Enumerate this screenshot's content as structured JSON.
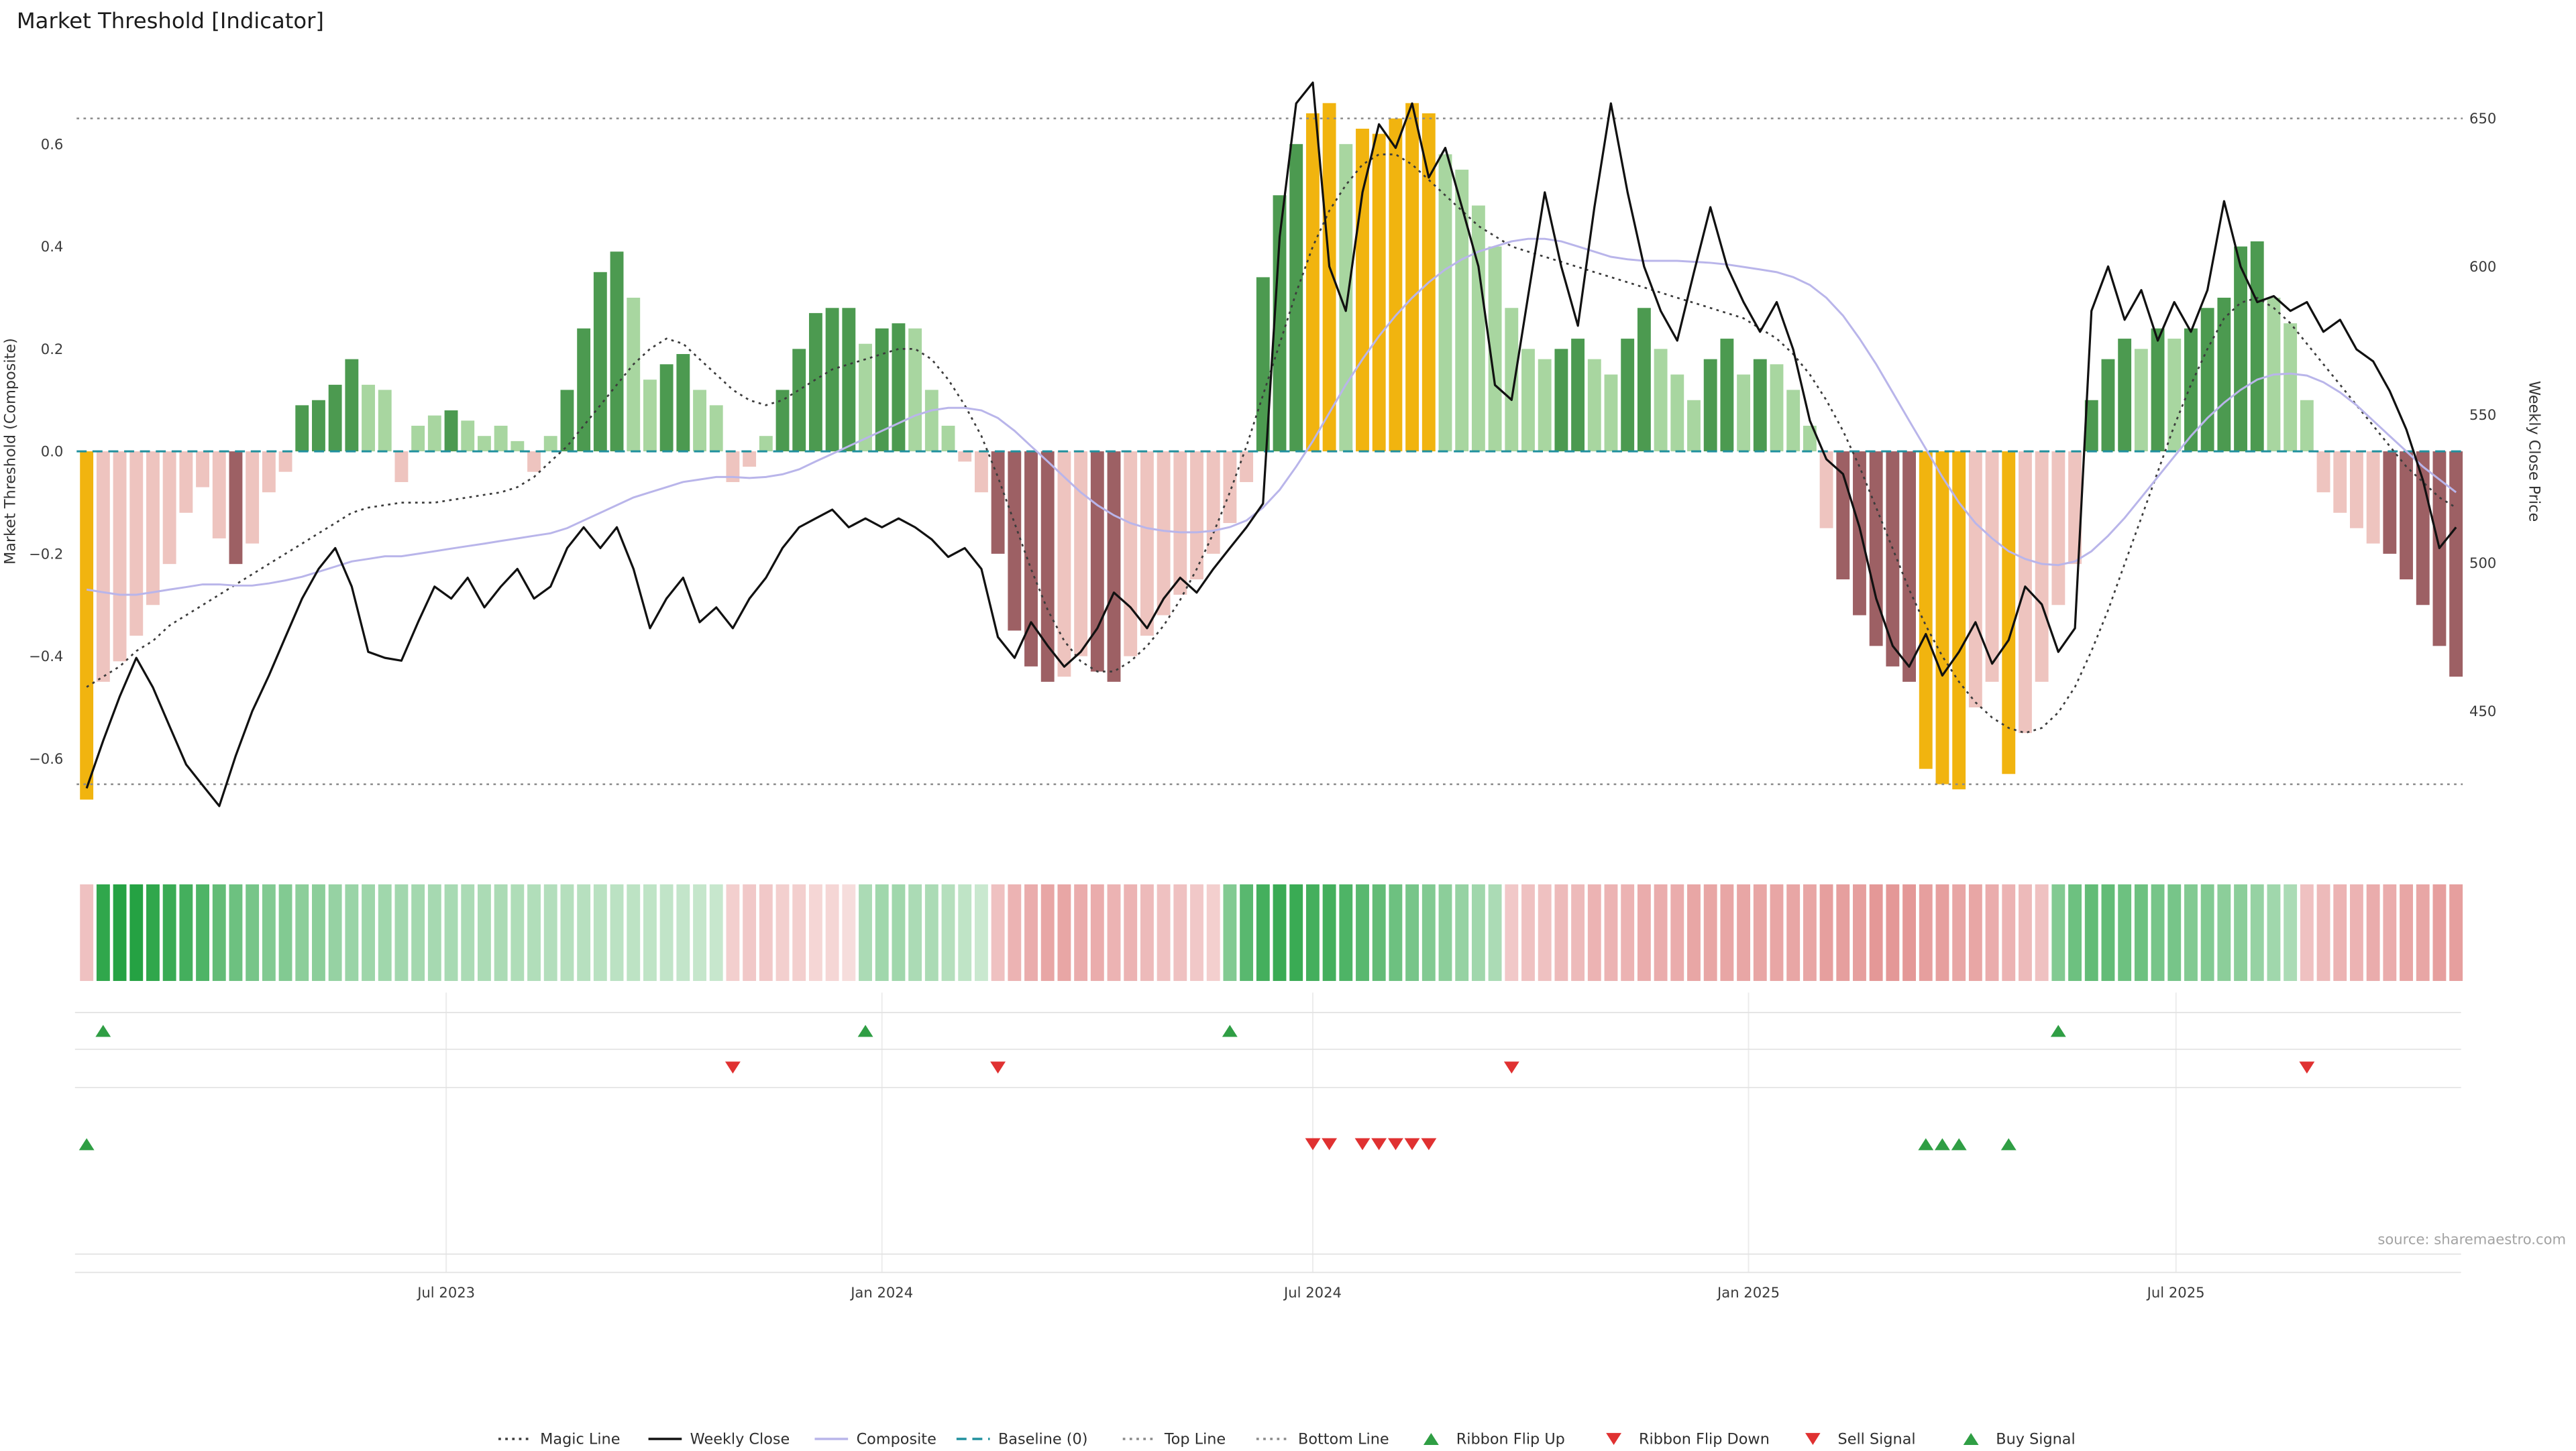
{
  "title": "Market Threshold [Indicator]",
  "source_note": "source: sharemaestro.com",
  "axes": {
    "left_label": "Market Threshold (Composite)",
    "right_label": "Weekly Close Price",
    "left_ticks": [
      "0.6",
      "0.4",
      "0.2",
      "0.0",
      "−0.2",
      "−0.4",
      "−0.6"
    ],
    "right_ticks": [
      "650",
      "600",
      "550",
      "500",
      "450"
    ],
    "x_ticks": [
      {
        "label": "Jul 2023",
        "week": 21.7
      },
      {
        "label": "Jan 2024",
        "week": 48.0
      },
      {
        "label": "Jul 2024",
        "week": 74.0
      },
      {
        "label": "Jan 2025",
        "week": 100.3
      },
      {
        "label": "Jul 2025",
        "week": 126.1
      }
    ]
  },
  "colors": {
    "bar_green_strong": "#4c9a50",
    "bar_green_soft": "#a8d6a0",
    "bar_red_strong": "#9d6064",
    "bar_red_soft": "#eec4bf",
    "extreme_gold": "#f1b40f",
    "weekly_close": "#111111",
    "composite": "#b9b5ea",
    "magic": "#3c3c3c",
    "baseline_teal": "#20909e",
    "guide_gray": "#8a8a8a",
    "signal_green": "#2f9e44",
    "signal_red": "#e03131",
    "grid": "#ececec",
    "separator": "#e2e2e2"
  },
  "legend": [
    {
      "label": "Magic Line",
      "swatch": "dotted-line",
      "color": "#3c3c3c"
    },
    {
      "label": "Weekly Close",
      "swatch": "solid-line",
      "color": "#111111"
    },
    {
      "label": "Composite",
      "swatch": "solid-line",
      "color": "#b9b5ea"
    },
    {
      "label": "Baseline (0)",
      "swatch": "dashed-line",
      "color": "#20909e"
    },
    {
      "label": "Top Line",
      "swatch": "dotted-line",
      "color": "#8a8a8a"
    },
    {
      "label": "Bottom Line",
      "swatch": "dotted-line",
      "color": "#8a8a8a"
    },
    {
      "label": "Ribbon Flip Up",
      "swatch": "triangle-up",
      "color": "#2f9e44"
    },
    {
      "label": "Ribbon Flip Down",
      "swatch": "triangle-down",
      "color": "#e03131"
    },
    {
      "label": "Sell Signal",
      "swatch": "triangle-down",
      "color": "#e03131"
    },
    {
      "label": "Buy Signal",
      "swatch": "triangle-up",
      "color": "#2f9e44"
    }
  ],
  "chart_data": {
    "type": "mixed_bar_line",
    "x_axis": {
      "start_date": "2023-01-30",
      "interval": "weekly",
      "points": 144
    },
    "ylim_left": [
      -0.81,
      0.77
    ],
    "ylim_right": [
      397,
      670
    ],
    "baseline": 0,
    "top_line": 0.65,
    "bottom_line": -0.65,
    "threshold": [
      -0.68,
      -0.45,
      -0.41,
      -0.36,
      -0.3,
      -0.22,
      -0.12,
      -0.07,
      -0.17,
      -0.22,
      -0.18,
      -0.08,
      -0.04,
      0.09,
      0.1,
      0.13,
      0.18,
      0.13,
      0.12,
      -0.06,
      0.05,
      0.07,
      0.08,
      0.06,
      0.03,
      0.05,
      0.02,
      -0.04,
      0.03,
      0.12,
      0.24,
      0.35,
      0.39,
      0.3,
      0.14,
      0.17,
      0.19,
      0.12,
      0.09,
      -0.06,
      -0.03,
      0.03,
      0.12,
      0.2,
      0.27,
      0.28,
      0.28,
      0.21,
      0.24,
      0.25,
      0.24,
      0.12,
      0.05,
      -0.02,
      -0.08,
      -0.2,
      -0.35,
      -0.42,
      -0.45,
      -0.44,
      -0.4,
      -0.43,
      -0.45,
      -0.4,
      -0.36,
      -0.32,
      -0.28,
      -0.25,
      -0.2,
      -0.14,
      -0.06,
      0.34,
      0.5,
      0.6,
      0.66,
      0.68,
      0.6,
      0.63,
      0.62,
      0.65,
      0.68,
      0.66,
      0.58,
      0.55,
      0.48,
      0.4,
      0.28,
      0.2,
      0.18,
      0.2,
      0.22,
      0.18,
      0.15,
      0.22,
      0.28,
      0.2,
      0.15,
      0.1,
      0.18,
      0.22,
      0.15,
      0.18,
      0.17,
      0.12,
      0.05,
      -0.15,
      -0.25,
      -0.32,
      -0.38,
      -0.42,
      -0.45,
      -0.62,
      -0.65,
      -0.66,
      -0.5,
      -0.45,
      -0.63,
      -0.55,
      -0.45,
      -0.3,
      -0.22,
      0.1,
      0.18,
      0.22,
      0.2,
      0.24,
      0.22,
      0.24,
      0.28,
      0.3,
      0.4,
      0.41,
      0.3,
      0.25,
      0.1,
      -0.08,
      -0.12,
      -0.15,
      -0.18,
      -0.2,
      -0.25,
      -0.3,
      -0.38,
      -0.44
    ],
    "weekly_close": [
      424,
      440,
      455,
      468,
      458,
      445,
      432,
      425,
      418,
      435,
      450,
      462,
      475,
      488,
      498,
      505,
      492,
      470,
      468,
      467,
      480,
      492,
      488,
      495,
      485,
      492,
      498,
      488,
      492,
      505,
      512,
      505,
      512,
      498,
      478,
      488,
      495,
      480,
      485,
      478,
      488,
      495,
      505,
      512,
      515,
      518,
      512,
      515,
      512,
      515,
      512,
      508,
      502,
      505,
      498,
      475,
      468,
      480,
      472,
      465,
      470,
      478,
      490,
      485,
      478,
      488,
      495,
      490,
      498,
      505,
      512,
      520,
      610,
      655,
      662,
      600,
      585,
      625,
      648,
      640,
      655,
      630,
      640,
      620,
      600,
      560,
      555,
      590,
      625,
      600,
      580,
      620,
      655,
      625,
      600,
      585,
      575,
      598,
      620,
      600,
      588,
      578,
      588,
      572,
      548,
      535,
      530,
      512,
      488,
      472,
      465,
      476,
      462,
      470,
      480,
      466,
      474,
      492,
      486,
      470,
      478,
      585,
      600,
      582,
      592,
      575,
      588,
      578,
      592,
      622,
      600,
      588,
      590,
      585,
      588,
      578,
      582,
      572,
      568,
      558,
      545,
      528,
      505,
      512
    ],
    "composite": [
      -0.27,
      -0.275,
      -0.28,
      -0.28,
      -0.275,
      -0.27,
      -0.265,
      -0.26,
      -0.26,
      -0.262,
      -0.262,
      -0.258,
      -0.252,
      -0.245,
      -0.235,
      -0.225,
      -0.215,
      -0.21,
      -0.205,
      -0.205,
      -0.2,
      -0.195,
      -0.19,
      -0.185,
      -0.18,
      -0.175,
      -0.17,
      -0.165,
      -0.16,
      -0.15,
      -0.135,
      -0.12,
      -0.105,
      -0.09,
      -0.08,
      -0.07,
      -0.06,
      -0.055,
      -0.05,
      -0.05,
      -0.052,
      -0.05,
      -0.045,
      -0.035,
      -0.02,
      -0.005,
      0.01,
      0.025,
      0.04,
      0.055,
      0.07,
      0.08,
      0.085,
      0.085,
      0.08,
      0.065,
      0.04,
      0.01,
      -0.02,
      -0.05,
      -0.08,
      -0.105,
      -0.125,
      -0.14,
      -0.15,
      -0.155,
      -0.158,
      -0.158,
      -0.155,
      -0.148,
      -0.135,
      -0.11,
      -0.075,
      -0.03,
      0.02,
      0.075,
      0.13,
      0.18,
      0.225,
      0.265,
      0.3,
      0.33,
      0.355,
      0.375,
      0.39,
      0.4,
      0.41,
      0.415,
      0.415,
      0.41,
      0.4,
      0.39,
      0.38,
      0.375,
      0.372,
      0.372,
      0.372,
      0.37,
      0.368,
      0.365,
      0.36,
      0.355,
      0.35,
      0.34,
      0.325,
      0.3,
      0.265,
      0.22,
      0.17,
      0.115,
      0.06,
      0.005,
      -0.05,
      -0.1,
      -0.14,
      -0.17,
      -0.195,
      -0.21,
      -0.22,
      -0.222,
      -0.215,
      -0.195,
      -0.165,
      -0.13,
      -0.09,
      -0.05,
      -0.01,
      0.03,
      0.065,
      0.095,
      0.12,
      0.14,
      0.15,
      0.152,
      0.148,
      0.135,
      0.115,
      0.09,
      0.06,
      0.03,
      0.0,
      -0.03,
      -0.055,
      -0.08
    ],
    "magic_line": [
      -0.46,
      -0.44,
      -0.42,
      -0.39,
      -0.37,
      -0.34,
      -0.32,
      -0.3,
      -0.28,
      -0.26,
      -0.24,
      -0.22,
      -0.2,
      -0.18,
      -0.16,
      -0.14,
      -0.12,
      -0.11,
      -0.105,
      -0.1,
      -0.1,
      -0.1,
      -0.095,
      -0.09,
      -0.085,
      -0.08,
      -0.07,
      -0.05,
      -0.02,
      0.01,
      0.05,
      0.09,
      0.13,
      0.17,
      0.2,
      0.22,
      0.21,
      0.18,
      0.15,
      0.12,
      0.1,
      0.09,
      0.1,
      0.12,
      0.14,
      0.16,
      0.17,
      0.18,
      0.19,
      0.2,
      0.2,
      0.18,
      0.14,
      0.09,
      0.03,
      -0.05,
      -0.14,
      -0.23,
      -0.31,
      -0.37,
      -0.41,
      -0.43,
      -0.43,
      -0.41,
      -0.38,
      -0.34,
      -0.29,
      -0.23,
      -0.16,
      -0.08,
      0.01,
      0.11,
      0.21,
      0.31,
      0.4,
      0.47,
      0.52,
      0.56,
      0.58,
      0.58,
      0.56,
      0.53,
      0.5,
      0.47,
      0.44,
      0.42,
      0.4,
      0.39,
      0.38,
      0.37,
      0.36,
      0.35,
      0.34,
      0.33,
      0.32,
      0.31,
      0.3,
      0.29,
      0.28,
      0.27,
      0.26,
      0.24,
      0.22,
      0.19,
      0.15,
      0.1,
      0.04,
      -0.03,
      -0.11,
      -0.19,
      -0.27,
      -0.34,
      -0.4,
      -0.45,
      -0.49,
      -0.52,
      -0.54,
      -0.55,
      -0.54,
      -0.51,
      -0.46,
      -0.39,
      -0.31,
      -0.22,
      -0.13,
      -0.04,
      0.05,
      0.13,
      0.2,
      0.26,
      0.29,
      0.3,
      0.28,
      0.25,
      0.21,
      0.17,
      0.13,
      0.09,
      0.05,
      0.01,
      -0.03,
      -0.06,
      -0.09,
      -0.11
    ],
    "ribbon": [
      -0.3,
      0.9,
      0.95,
      0.95,
      0.9,
      0.85,
      0.8,
      0.75,
      0.65,
      0.6,
      0.55,
      0.5,
      0.5,
      0.45,
      0.45,
      0.4,
      0.38,
      0.36,
      0.35,
      0.34,
      0.33,
      0.32,
      0.31,
      0.3,
      0.3,
      0.3,
      0.28,
      0.27,
      0.26,
      0.25,
      0.24,
      0.23,
      0.22,
      0.21,
      0.2,
      0.19,
      0.18,
      0.17,
      0.16,
      -0.2,
      -0.25,
      -0.25,
      -0.2,
      -0.2,
      -0.15,
      -0.15,
      -0.1,
      0.3,
      0.35,
      0.35,
      0.3,
      0.3,
      0.25,
      0.2,
      0.15,
      -0.3,
      -0.4,
      -0.45,
      -0.5,
      -0.5,
      -0.45,
      -0.45,
      -0.4,
      -0.4,
      -0.35,
      -0.3,
      -0.3,
      -0.25,
      -0.2,
      0.5,
      0.7,
      0.8,
      0.85,
      0.85,
      0.8,
      0.8,
      0.75,
      0.7,
      0.65,
      0.6,
      0.55,
      0.5,
      0.45,
      0.4,
      0.35,
      0.3,
      -0.25,
      -0.3,
      -0.3,
      -0.35,
      -0.35,
      -0.4,
      -0.4,
      -0.4,
      -0.45,
      -0.45,
      -0.45,
      -0.5,
      -0.5,
      -0.5,
      -0.5,
      -0.5,
      -0.5,
      -0.5,
      -0.5,
      -0.55,
      -0.55,
      -0.55,
      -0.6,
      -0.6,
      -0.6,
      -0.55,
      -0.55,
      -0.5,
      -0.5,
      -0.45,
      -0.4,
      -0.35,
      -0.3,
      0.5,
      0.6,
      0.65,
      0.65,
      0.6,
      0.6,
      0.55,
      0.55,
      0.5,
      0.5,
      0.45,
      0.45,
      0.4,
      0.35,
      0.3,
      -0.3,
      -0.35,
      -0.4,
      -0.4,
      -0.45,
      -0.45,
      -0.5,
      -0.5,
      -0.55,
      -0.55
    ],
    "signals": {
      "ribbon_flip_up": [
        1,
        47,
        69,
        119
      ],
      "ribbon_flip_down": [
        39,
        55,
        86,
        134
      ],
      "sell": [
        74,
        75,
        77,
        78,
        79,
        80,
        81
      ],
      "buy": [
        0,
        111,
        112,
        113,
        116
      ]
    }
  }
}
